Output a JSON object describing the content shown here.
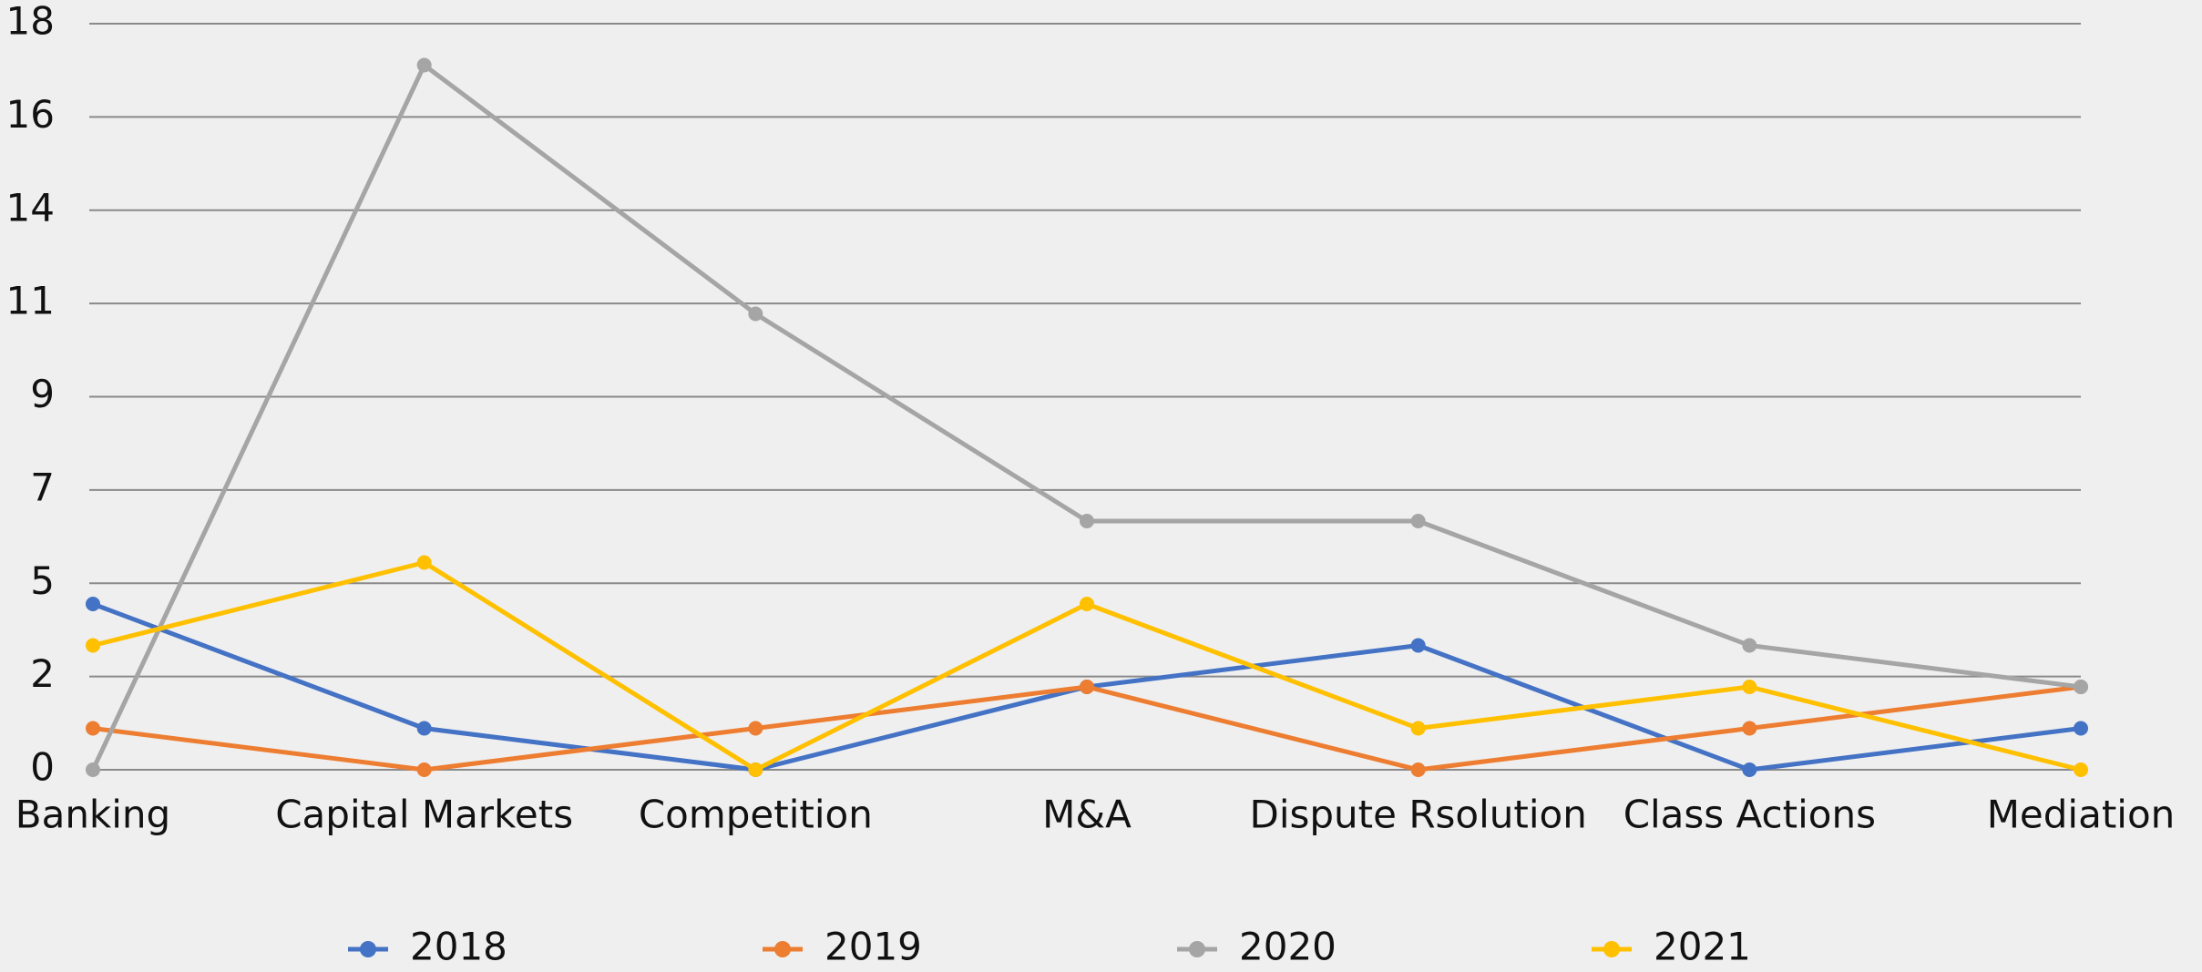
{
  "chart_data": {
    "type": "line",
    "categories": [
      "Banking",
      "Capital Markets",
      "Competition",
      "M&A",
      "Dispute Rsolution",
      "Class Actions",
      "Mediation"
    ],
    "series": [
      {
        "name": "2018",
        "color": "#4472c4",
        "values": [
          4,
          1,
          0,
          2,
          3,
          0,
          1
        ]
      },
      {
        "name": "2019",
        "color": "#ed7d31",
        "values": [
          1,
          0,
          1,
          2,
          0,
          1,
          2
        ]
      },
      {
        "name": "2020",
        "color": "#a5a5a5",
        "values": [
          0,
          17,
          11,
          6,
          6,
          3,
          2
        ]
      },
      {
        "name": "2021",
        "color": "#ffc000",
        "values": [
          3,
          5,
          0,
          4,
          1,
          2,
          0
        ]
      }
    ],
    "ylim": [
      0,
      18
    ],
    "yticks": [
      0,
      {
        "value": 2.25,
        "label": "2"
      },
      {
        "value": 4.5,
        "label": "5"
      },
      {
        "value": 6.75,
        "label": "7"
      },
      9,
      {
        "value": 11.25,
        "label": "11"
      },
      {
        "value": 13.5,
        "label": "14"
      },
      {
        "value": 15.75,
        "label": "16"
      },
      18
    ],
    "grid": true,
    "legend": "bottom"
  }
}
